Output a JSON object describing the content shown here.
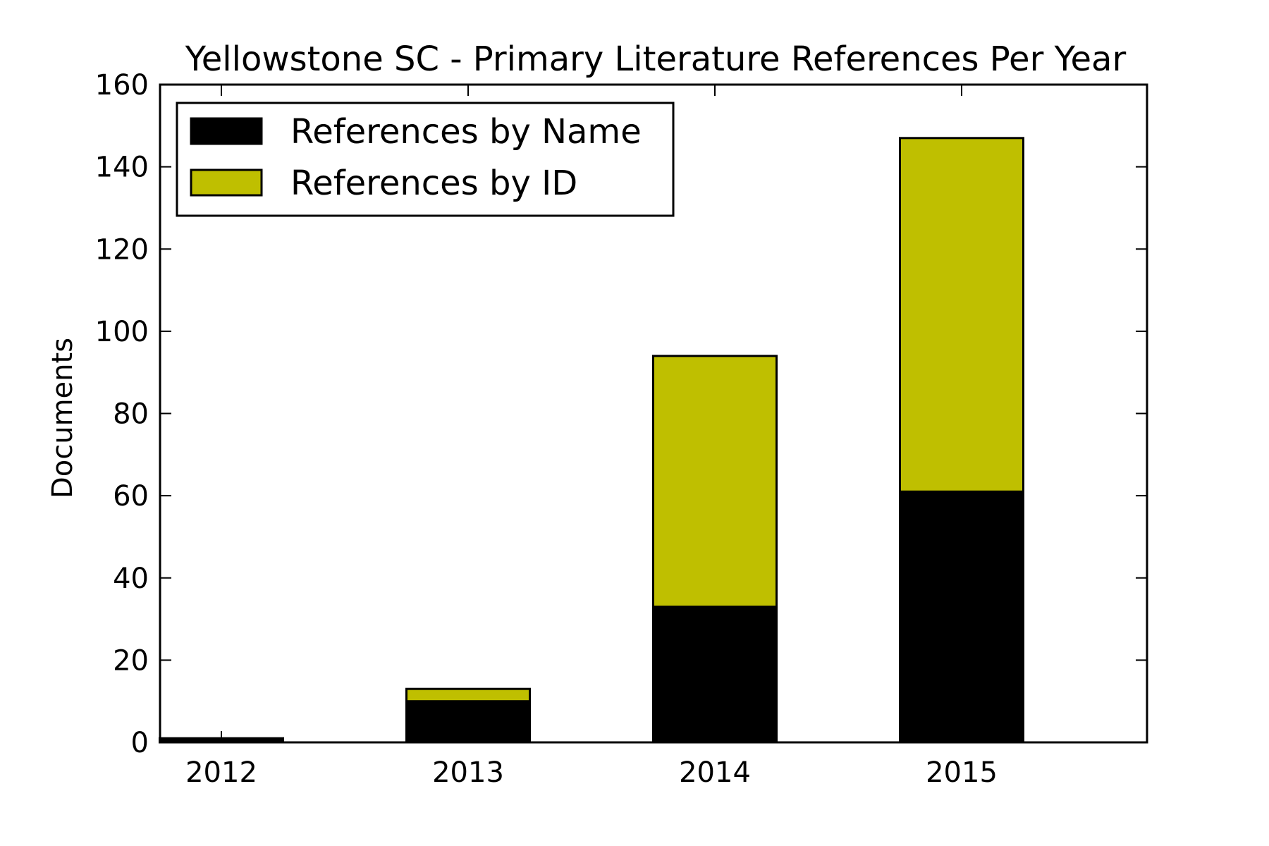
{
  "chart_data": {
    "type": "bar",
    "stacked": true,
    "title": "Yellowstone SC - Primary Literature References Per Year",
    "xlabel": "",
    "ylabel": "Documents",
    "categories": [
      "2012",
      "2013",
      "2014",
      "2015"
    ],
    "series": [
      {
        "name": "References by Name",
        "values": [
          1,
          10,
          33,
          61
        ],
        "color": "#000000"
      },
      {
        "name": "References by ID",
        "values": [
          0,
          3,
          61,
          86
        ],
        "color": "#bfbf00"
      }
    ],
    "ylim": [
      0,
      160
    ],
    "yticks": [
      0,
      20,
      40,
      60,
      80,
      100,
      120,
      140,
      160
    ],
    "legend_position": "top-left",
    "grid": false
  }
}
